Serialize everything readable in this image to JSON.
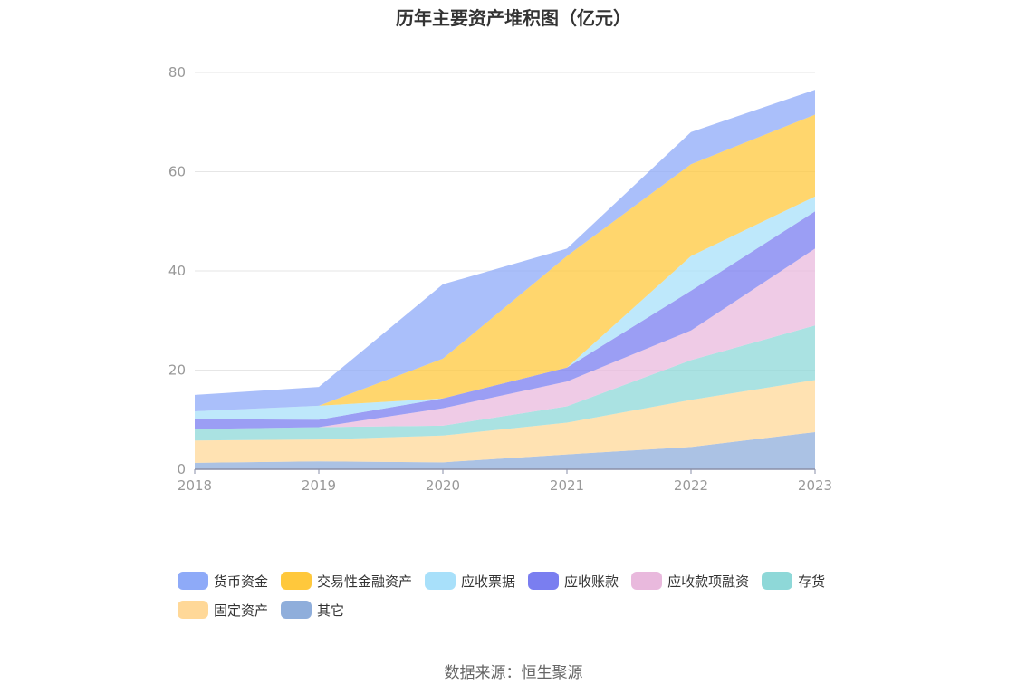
{
  "title": "历年主要资产堆积图（亿元）",
  "source": "数据来源：恒生聚源",
  "chart_data": {
    "type": "area",
    "stacked": true,
    "categories": [
      "2018",
      "2019",
      "2020",
      "2021",
      "2022",
      "2023"
    ],
    "ylim": [
      0,
      80
    ],
    "yticks": [
      0,
      20,
      40,
      60,
      80
    ],
    "grid": true,
    "legend_position": "bottom",
    "series": [
      {
        "name": "其它",
        "color": "#8faedb",
        "values": [
          1.3,
          1.6,
          1.4,
          3.0,
          4.5,
          7.5
        ]
      },
      {
        "name": "固定资产",
        "color": "#ffd898",
        "values": [
          4.5,
          4.4,
          5.4,
          6.4,
          9.5,
          10.5
        ]
      },
      {
        "name": "存货",
        "color": "#8ed8d8",
        "values": [
          2.3,
          2.5,
          2.0,
          3.3,
          8.0,
          11.0
        ]
      },
      {
        "name": "应收款项融资",
        "color": "#e9b9dd",
        "values": [
          0.0,
          0.0,
          3.5,
          5.0,
          6.0,
          15.5
        ]
      },
      {
        "name": "应收账款",
        "color": "#7a7ef0",
        "values": [
          2.0,
          1.5,
          2.0,
          2.8,
          8.0,
          7.5
        ]
      },
      {
        "name": "应收票据",
        "color": "#a8e0fa",
        "values": [
          1.6,
          2.8,
          0.0,
          0.0,
          7.0,
          3.0
        ]
      },
      {
        "name": "交易性金融资产",
        "color": "#ffc83c",
        "values": [
          0.0,
          0.0,
          8.0,
          22.5,
          18.5,
          16.5
        ]
      },
      {
        "name": "货币资金",
        "color": "#8eaaf8",
        "values": [
          3.3,
          3.8,
          15.0,
          1.5,
          6.5,
          5.0
        ]
      }
    ]
  },
  "legend_order": [
    "货币资金",
    "交易性金融资产",
    "应收票据",
    "应收账款",
    "应收款项融资",
    "存货",
    "固定资产",
    "其它"
  ]
}
